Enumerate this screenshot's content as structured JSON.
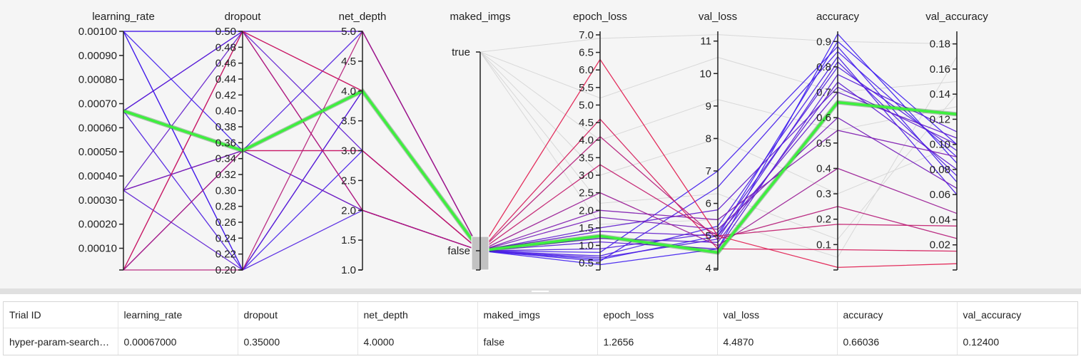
{
  "plot": {
    "type": "parallel-coordinates",
    "axes": [
      {
        "key": "learning_rate",
        "title": "learning_rate",
        "type": "numeric",
        "range": [
          1e-05,
          0.001
        ],
        "ticks": [
          "0.00100",
          "0.00090",
          "0.00080",
          "0.00070",
          "0.00060",
          "0.00050",
          "0.00040",
          "0.00030",
          "0.00020",
          "0.00010"
        ],
        "tick_values": [
          0.001,
          0.0009,
          0.0008,
          0.0007,
          0.0006,
          0.0005,
          0.0004,
          0.0003,
          0.0002,
          0.0001
        ]
      },
      {
        "key": "dropout",
        "title": "dropout",
        "type": "numeric",
        "range": [
          0.2,
          0.5
        ],
        "ticks": [
          "0.50",
          "0.48",
          "0.46",
          "0.44",
          "0.42",
          "0.40",
          "0.38",
          "0.36",
          "0.34",
          "0.32",
          "0.30",
          "0.28",
          "0.26",
          "0.24",
          "0.22",
          "0.20"
        ],
        "tick_values": [
          0.5,
          0.48,
          0.46,
          0.44,
          0.42,
          0.4,
          0.38,
          0.36,
          0.34,
          0.32,
          0.3,
          0.28,
          0.26,
          0.24,
          0.22,
          0.2
        ]
      },
      {
        "key": "net_depth",
        "title": "net_depth",
        "type": "numeric",
        "range": [
          1,
          5
        ],
        "ticks": [
          "5.0",
          "4.5",
          "4.0",
          "3.5",
          "3.0",
          "2.5",
          "2.0",
          "1.5",
          "1.0"
        ],
        "tick_values": [
          5,
          4.5,
          4,
          3.5,
          3,
          2.5,
          2,
          1.5,
          1
        ]
      },
      {
        "key": "maked_imgs",
        "title": "maked_imgs",
        "type": "categorical",
        "categories": [
          "true",
          "false"
        ]
      },
      {
        "key": "epoch_loss",
        "title": "epoch_loss",
        "type": "numeric",
        "range": [
          0.3,
          7.1
        ],
        "ticks": [
          "7.0",
          "6.5",
          "6.0",
          "5.5",
          "5.0",
          "4.5",
          "4.0",
          "3.5",
          "3.0",
          "2.5",
          "2.0",
          "1.5",
          "1.0",
          "0.5"
        ],
        "tick_values": [
          7,
          6.5,
          6,
          5.5,
          5,
          4.5,
          4,
          3.5,
          3,
          2.5,
          2,
          1.5,
          1,
          0.5
        ]
      },
      {
        "key": "val_loss",
        "title": "val_loss",
        "type": "numeric",
        "range": [
          3.95,
          11.3
        ],
        "ticks": [
          "11",
          "10",
          "9",
          "8",
          "7",
          "6",
          "5",
          "4"
        ],
        "tick_values": [
          11,
          10,
          9,
          8,
          7,
          6,
          5,
          4
        ]
      },
      {
        "key": "accuracy",
        "title": "accuracy",
        "type": "numeric",
        "range": [
          0,
          0.94
        ],
        "ticks": [
          "0.9",
          "0.8",
          "0.7",
          "0.6",
          "0.5",
          "0.4",
          "0.3",
          "0.2",
          "0.1"
        ],
        "tick_values": [
          0.9,
          0.8,
          0.7,
          0.6,
          0.5,
          0.4,
          0.3,
          0.2,
          0.1
        ]
      },
      {
        "key": "val_accuracy",
        "title": "val_accuracy",
        "type": "numeric",
        "range": [
          0,
          0.19
        ],
        "ticks": [
          "0.18",
          "0.16",
          "0.14",
          "0.12",
          "0.10",
          "0.08",
          "0.06",
          "0.04",
          "0.02"
        ],
        "tick_values": [
          0.18,
          0.16,
          0.14,
          0.12,
          0.1,
          0.08,
          0.06,
          0.04,
          0.02
        ]
      }
    ],
    "colors": {
      "high": "#3d1cf0",
      "low": "#e3184a",
      "highlight": "#3df03d",
      "filtered": "#d8d8d8"
    }
  },
  "chart_data": {
    "type": "parallel-coordinates",
    "highlighted": {
      "learning_rate": 0.00067,
      "dropout": 0.35,
      "net_depth": 4,
      "maked_imgs": "false",
      "epoch_loss": 1.2656,
      "val_loss": 4.487,
      "accuracy": 0.66036,
      "val_accuracy": 0.124
    },
    "series": [
      {
        "learning_rate": 0.001,
        "dropout": 0.5,
        "net_depth": 5,
        "maked_imgs": "false",
        "epoch_loss": 0.45,
        "val_loss": 4.6,
        "accuracy": 0.93,
        "val_accuracy": 0.085
      },
      {
        "learning_rate": 0.001,
        "dropout": 0.2,
        "net_depth": 4,
        "maked_imgs": "false",
        "epoch_loss": 0.6,
        "val_loss": 5.0,
        "accuracy": 0.9,
        "val_accuracy": 0.1
      },
      {
        "learning_rate": 0.001,
        "dropout": 0.35,
        "net_depth": 2,
        "maked_imgs": "false",
        "epoch_loss": 0.8,
        "val_loss": 7.0,
        "accuracy": 0.88,
        "val_accuracy": 0.07
      },
      {
        "learning_rate": 0.001,
        "dropout": 0.2,
        "net_depth": 3,
        "maked_imgs": "false",
        "epoch_loss": 0.55,
        "val_loss": 6.5,
        "accuracy": 0.86,
        "val_accuracy": 0.09
      },
      {
        "learning_rate": 0.001,
        "dropout": 0.5,
        "net_depth": 2,
        "maked_imgs": "false",
        "epoch_loss": 0.7,
        "val_loss": 5.3,
        "accuracy": 0.84,
        "val_accuracy": 0.06
      },
      {
        "learning_rate": 0.00067,
        "dropout": 0.5,
        "net_depth": 3,
        "maked_imgs": "false",
        "epoch_loss": 1.5,
        "val_loss": 5.8,
        "accuracy": 0.72,
        "val_accuracy": 0.1
      },
      {
        "learning_rate": 0.00067,
        "dropout": 0.35,
        "net_depth": 5,
        "maked_imgs": "false",
        "epoch_loss": 0.9,
        "val_loss": 5.1,
        "accuracy": 0.8,
        "val_accuracy": 0.095
      },
      {
        "learning_rate": 0.00067,
        "dropout": 0.2,
        "net_depth": 2,
        "maked_imgs": "false",
        "epoch_loss": 0.65,
        "val_loss": 4.9,
        "accuracy": 0.82,
        "val_accuracy": 0.075
      },
      {
        "learning_rate": 0.00067,
        "dropout": 0.5,
        "net_depth": 4,
        "maked_imgs": "false",
        "epoch_loss": 1.1,
        "val_loss": 4.6,
        "accuracy": 0.77,
        "val_accuracy": 0.11
      },
      {
        "learning_rate": 0.00034,
        "dropout": 0.35,
        "net_depth": 3,
        "maked_imgs": "false",
        "epoch_loss": 2.0,
        "val_loss": 5.5,
        "accuracy": 0.55,
        "val_accuracy": 0.09
      },
      {
        "learning_rate": 0.00034,
        "dropout": 0.5,
        "net_depth": 5,
        "maked_imgs": "false",
        "epoch_loss": 1.4,
        "val_loss": 5.0,
        "accuracy": 0.7,
        "val_accuracy": 0.105
      },
      {
        "learning_rate": 0.00034,
        "dropout": 0.2,
        "net_depth": 4,
        "maked_imgs": "false",
        "epoch_loss": 1.2,
        "val_loss": 4.8,
        "accuracy": 0.74,
        "val_accuracy": 0.08
      },
      {
        "learning_rate": 0.00034,
        "dropout": 0.35,
        "net_depth": 2,
        "maked_imgs": "false",
        "epoch_loss": 1.8,
        "val_loss": 5.2,
        "accuracy": 0.6,
        "val_accuracy": 0.065
      },
      {
        "learning_rate": 1e-05,
        "dropout": 0.5,
        "net_depth": 4,
        "maked_imgs": "false",
        "epoch_loss": 6.3,
        "val_loss": 5.0,
        "accuracy": 0.01,
        "val_accuracy": 0.005
      },
      {
        "learning_rate": 1e-05,
        "dropout": 0.35,
        "net_depth": 3,
        "maked_imgs": "false",
        "epoch_loss": 4.6,
        "val_loss": 4.6,
        "accuracy": 0.08,
        "val_accuracy": 0.015
      },
      {
        "learning_rate": 1e-05,
        "dropout": 0.2,
        "net_depth": 5,
        "maked_imgs": "false",
        "epoch_loss": 4.1,
        "val_loss": 4.9,
        "accuracy": 0.25,
        "val_accuracy": 0.025
      },
      {
        "learning_rate": 1e-05,
        "dropout": 0.5,
        "net_depth": 2,
        "maked_imgs": "false",
        "epoch_loss": 3.3,
        "val_loss": 5.0,
        "accuracy": 0.18,
        "val_accuracy": 0.035
      },
      {
        "learning_rate": 1e-05,
        "dropout": 0.35,
        "net_depth": 4,
        "maked_imgs": "false",
        "epoch_loss": 2.5,
        "val_loss": 4.7,
        "accuracy": 0.4,
        "val_accuracy": 0.045
      }
    ],
    "filtered_out": [
      {
        "maked_imgs": "true",
        "epoch_loss": 6.9,
        "val_loss": 11.2,
        "accuracy": 0.9,
        "val_accuracy": 0.18
      },
      {
        "maked_imgs": "true",
        "epoch_loss": 5.2,
        "val_loss": 10.5,
        "accuracy": 0.7,
        "val_accuracy": 0.15
      },
      {
        "maked_imgs": "true",
        "epoch_loss": 4.0,
        "val_loss": 9.2,
        "accuracy": 0.55,
        "val_accuracy": 0.13
      },
      {
        "maked_imgs": "true",
        "epoch_loss": 3.0,
        "val_loss": 8.0,
        "accuracy": 0.3,
        "val_accuracy": 0.1
      },
      {
        "maked_imgs": "true",
        "epoch_loss": 2.2,
        "val_loss": 6.3,
        "accuracy": 0.12,
        "val_accuracy": 0.14
      },
      {
        "maked_imgs": "true",
        "epoch_loss": 1.6,
        "val_loss": 5.5,
        "accuracy": 0.05,
        "val_accuracy": 0.17
      }
    ]
  },
  "table": {
    "headers": [
      "Trial ID",
      "learning_rate",
      "dropout",
      "net_depth",
      "maked_imgs",
      "epoch_loss",
      "val_loss",
      "accuracy",
      "val_accuracy"
    ],
    "row": [
      "hyper-param-search-trial",
      "0.00067000",
      "0.35000",
      "4.0000",
      "false",
      "1.2656",
      "4.4870",
      "0.66036",
      "0.12400"
    ]
  }
}
